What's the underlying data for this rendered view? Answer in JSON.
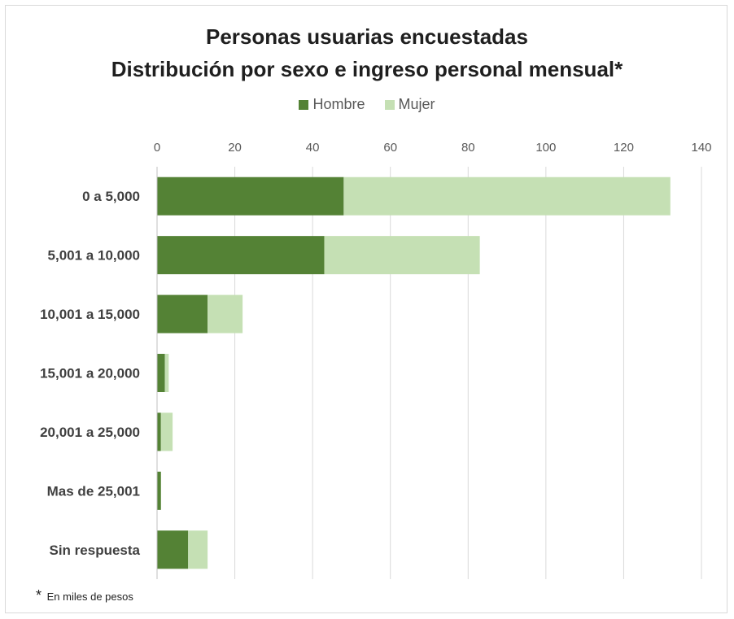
{
  "chart_data": {
    "type": "bar",
    "orientation": "horizontal",
    "stacked": true,
    "title": "Personas usuarias encuestadas",
    "subtitle": "Distribución por sexo e ingreso personal mensual*",
    "categories": [
      "0 a 5,000",
      "5,001 a 10,000",
      "10,001 a 15,000",
      "15,001 a 20,000",
      "20,001 a 25,000",
      "Mas de 25,001",
      "Sin respuesta"
    ],
    "series": [
      {
        "name": "Hombre",
        "color": "#548235",
        "values": [
          48,
          43,
          13,
          2,
          1,
          1,
          8
        ]
      },
      {
        "name": "Mujer",
        "color": "#c5e0b4",
        "values": [
          84,
          40,
          9,
          1,
          3,
          0,
          5
        ]
      }
    ],
    "xlim": [
      0,
      140
    ],
    "xticks": [
      "0",
      "20",
      "40",
      "60",
      "80",
      "100",
      "120",
      "140"
    ],
    "xaxis_position": "top",
    "grid": true,
    "legend_position": "top"
  },
  "footnote": {
    "mark": "*",
    "text": "En miles de pesos"
  }
}
